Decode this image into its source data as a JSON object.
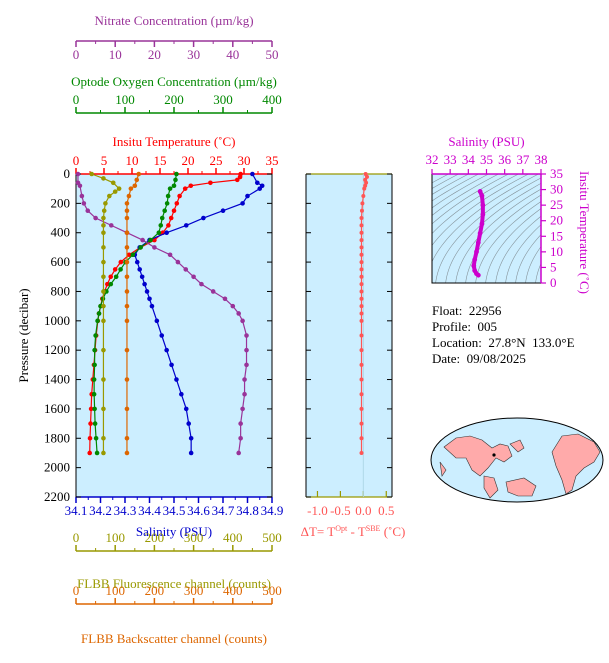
{
  "colors": {
    "temperature": "#ff0000",
    "salinity": "#0000cc",
    "oxygen": "#008800",
    "nitrate": "#993399",
    "fluorescence": "#999900",
    "backscatter": "#dd6600",
    "delta": "#ff5555",
    "ts_axis": "#cc00cc",
    "panel_bg": "#cceeff",
    "map_land": "#ffaaaa"
  },
  "info": {
    "float": "Float:  22956",
    "profile": "Profile:  005",
    "location": "Location:  27.8°N  133.0°E",
    "date": "Date:  09/08/2025"
  },
  "chart_data": [
    {
      "type": "line",
      "ylabel": "Pressure (decibar)",
      "ylim": [
        2200,
        0
      ],
      "yticks": [
        "0",
        "200",
        "400",
        "600",
        "800",
        "1000",
        "1200",
        "1400",
        "1600",
        "1800",
        "2000",
        "2200"
      ],
      "axes": {
        "temperature": {
          "title": "Insitu Temperature (˚C)",
          "range": [
            0,
            35
          ],
          "ticks": [
            "0",
            "5",
            "10",
            "15",
            "20",
            "25",
            "30",
            "35"
          ]
        },
        "salinity": {
          "title": "Salinity (PSU)",
          "range": [
            34.1,
            34.9
          ],
          "ticks": [
            "34.1",
            "34.2",
            "34.3",
            "34.4",
            "34.5",
            "34.6",
            "34.7",
            "34.8",
            "34.9"
          ]
        },
        "oxygen": {
          "title": "Optode Oxygen Concentration (µm/kg)",
          "range": [
            0,
            400
          ],
          "ticks": [
            "0",
            "100",
            "200",
            "300",
            "400"
          ]
        },
        "nitrate": {
          "title": "Nitrate Concentration (µm/kg)",
          "range": [
            0,
            50
          ],
          "ticks": [
            "0",
            "10",
            "20",
            "30",
            "40",
            "50"
          ]
        },
        "fluorescence": {
          "title": "FLBB Fluorescence channel (counts)",
          "range": [
            0,
            500
          ],
          "ticks": [
            "0",
            "100",
            "200",
            "300",
            "400",
            "500"
          ]
        },
        "backscatter": {
          "title": "FLBB Backscatter channel (counts)",
          "range": [
            0,
            500
          ],
          "ticks": [
            "0",
            "100",
            "200",
            "300",
            "400",
            "500"
          ]
        }
      },
      "series": [
        {
          "name": "temperature",
          "values": [
            [
              29.4,
              0
            ],
            [
              29.3,
              20
            ],
            [
              28.8,
              40
            ],
            [
              24.0,
              60
            ],
            [
              20.5,
              80
            ],
            [
              19.5,
              100
            ],
            [
              18.5,
              150
            ],
            [
              18.0,
              200
            ],
            [
              17.5,
              250
            ],
            [
              17.0,
              300
            ],
            [
              16.5,
              350
            ],
            [
              15.5,
              400
            ],
            [
              14.0,
              450
            ],
            [
              11.5,
              500
            ],
            [
              9.5,
              550
            ],
            [
              8.0,
              600
            ],
            [
              7.0,
              650
            ],
            [
              6.2,
              700
            ],
            [
              5.6,
              750
            ],
            [
              5.1,
              800
            ],
            [
              4.7,
              850
            ],
            [
              4.4,
              900
            ],
            [
              4.1,
              950
            ],
            [
              3.9,
              1000
            ],
            [
              3.6,
              1100
            ],
            [
              3.4,
              1200
            ],
            [
              3.2,
              1300
            ],
            [
              3.0,
              1400
            ],
            [
              2.8,
              1500
            ],
            [
              2.7,
              1600
            ],
            [
              2.6,
              1700
            ],
            [
              2.5,
              1800
            ],
            [
              2.45,
              1900
            ]
          ]
        },
        {
          "name": "salinity",
          "values": [
            [
              34.82,
              0
            ],
            [
              34.84,
              60
            ],
            [
              34.86,
              80
            ],
            [
              34.85,
              100
            ],
            [
              34.8,
              150
            ],
            [
              34.78,
              200
            ],
            [
              34.7,
              250
            ],
            [
              34.62,
              300
            ],
            [
              34.55,
              350
            ],
            [
              34.47,
              400
            ],
            [
              34.4,
              450
            ],
            [
              34.36,
              500
            ],
            [
              34.34,
              550
            ],
            [
              34.35,
              600
            ],
            [
              34.36,
              650
            ],
            [
              34.37,
              700
            ],
            [
              34.38,
              750
            ],
            [
              34.39,
              800
            ],
            [
              34.4,
              850
            ],
            [
              34.41,
              900
            ],
            [
              34.43,
              1000
            ],
            [
              34.45,
              1100
            ],
            [
              34.47,
              1200
            ],
            [
              34.49,
              1300
            ],
            [
              34.51,
              1400
            ],
            [
              34.53,
              1500
            ],
            [
              34.55,
              1600
            ],
            [
              34.56,
              1700
            ],
            [
              34.57,
              1800
            ],
            [
              34.57,
              1900
            ]
          ]
        },
        {
          "name": "oxygen",
          "values": [
            [
              205,
              0
            ],
            [
              203,
              40
            ],
            [
              200,
              80
            ],
            [
              192,
              100
            ],
            [
              188,
              150
            ],
            [
              186,
              200
            ],
            [
              181,
              250
            ],
            [
              176,
              300
            ],
            [
              173,
              350
            ],
            [
              169,
              400
            ],
            [
              152,
              450
            ],
            [
              132,
              500
            ],
            [
              116,
              550
            ],
            [
              101,
              600
            ],
            [
              91,
              650
            ],
            [
              82,
              700
            ],
            [
              71,
              750
            ],
            [
              62,
              800
            ],
            [
              55,
              850
            ],
            [
              50,
              900
            ],
            [
              47,
              950
            ],
            [
              44,
              1000
            ],
            [
              40,
              1100
            ],
            [
              38,
              1200
            ],
            [
              38,
              1300
            ],
            [
              37,
              1400
            ],
            [
              37,
              1500
            ],
            [
              38,
              1600
            ],
            [
              39,
              1700
            ],
            [
              41,
              1800
            ],
            [
              43,
              1900
            ]
          ]
        },
        {
          "name": "nitrate",
          "values": [
            [
              0.5,
              0
            ],
            [
              0.5,
              60
            ],
            [
              1,
              80
            ],
            [
              1.5,
              150
            ],
            [
              2,
              200
            ],
            [
              3,
              250
            ],
            [
              5,
              300
            ],
            [
              9,
              350
            ],
            [
              13,
              400
            ],
            [
              17,
              450
            ],
            [
              20,
              500
            ],
            [
              24,
              550
            ],
            [
              26,
              600
            ],
            [
              28,
              650
            ],
            [
              30,
              700
            ],
            [
              32,
              750
            ],
            [
              35,
              800
            ],
            [
              38,
              850
            ],
            [
              40,
              900
            ],
            [
              41.5,
              950
            ],
            [
              42.5,
              1000
            ],
            [
              43.5,
              1100
            ],
            [
              43.5,
              1200
            ],
            [
              43.5,
              1300
            ],
            [
              43,
              1400
            ],
            [
              43,
              1500
            ],
            [
              42.5,
              1600
            ],
            [
              42,
              1700
            ],
            [
              42,
              1800
            ],
            [
              41.5,
              1900
            ]
          ]
        },
        {
          "name": "fluorescence",
          "values": [
            [
              40,
              0
            ],
            [
              70,
              30
            ],
            [
              95,
              60
            ],
            [
              110,
              100
            ],
            [
              100,
              120
            ],
            [
              85,
              150
            ],
            [
              75,
              200
            ],
            [
              72,
              250
            ],
            [
              70,
              300
            ],
            [
              70,
              350
            ],
            [
              70,
              400
            ],
            [
              70,
              500
            ],
            [
              70,
              600
            ],
            [
              70,
              700
            ],
            [
              70,
              800
            ],
            [
              70,
              900
            ],
            [
              70,
              1000
            ],
            [
              70,
              1200
            ],
            [
              70,
              1400
            ],
            [
              70,
              1600
            ],
            [
              70,
              1800
            ],
            [
              70,
              1900
            ]
          ]
        },
        {
          "name": "backscatter",
          "values": [
            [
              160,
              0
            ],
            [
              155,
              40
            ],
            [
              150,
              80
            ],
            [
              140,
              100
            ],
            [
              135,
              150
            ],
            [
              130,
              200
            ],
            [
              130,
              250
            ],
            [
              130,
              300
            ],
            [
              130,
              400
            ],
            [
              130,
              500
            ],
            [
              130,
              600
            ],
            [
              130,
              700
            ],
            [
              130,
              800
            ],
            [
              130,
              900
            ],
            [
              130,
              1000
            ],
            [
              130,
              1200
            ],
            [
              130,
              1400
            ],
            [
              130,
              1600
            ],
            [
              130,
              1800
            ],
            [
              130,
              1900
            ]
          ]
        }
      ]
    },
    {
      "type": "scatter",
      "xlabel": "ΔT= T^Opt - T^SBE (˚C)",
      "xlabel_parts": {
        "base": "ΔT= T",
        "sup1": "Opt",
        "mid": " - T",
        "sup2": "SBE",
        "tail": " (˚C)"
      },
      "xlim": [
        -1.25,
        0.625
      ],
      "xticks": [
        "-1.0",
        "-0.5",
        "0.0",
        "0.5"
      ],
      "ylim": [
        2200,
        0
      ],
      "values": [
        [
          0.05,
          0
        ],
        [
          0.08,
          20
        ],
        [
          0.04,
          40
        ],
        [
          0.06,
          60
        ],
        [
          0.04,
          80
        ],
        [
          0.02,
          100
        ],
        [
          0.0,
          150
        ],
        [
          -0.02,
          200
        ],
        [
          -0.03,
          250
        ],
        [
          -0.04,
          300
        ],
        [
          -0.04,
          350
        ],
        [
          -0.04,
          400
        ],
        [
          -0.04,
          450
        ],
        [
          -0.04,
          500
        ],
        [
          -0.04,
          550
        ],
        [
          -0.04,
          600
        ],
        [
          -0.04,
          650
        ],
        [
          -0.04,
          700
        ],
        [
          -0.04,
          750
        ],
        [
          -0.04,
          800
        ],
        [
          -0.04,
          850
        ],
        [
          -0.04,
          900
        ],
        [
          -0.04,
          950
        ],
        [
          -0.04,
          1000
        ],
        [
          -0.04,
          1100
        ],
        [
          -0.04,
          1200
        ],
        [
          -0.04,
          1300
        ],
        [
          -0.04,
          1400
        ],
        [
          -0.04,
          1500
        ],
        [
          -0.04,
          1600
        ],
        [
          -0.04,
          1700
        ],
        [
          -0.04,
          1800
        ],
        [
          -0.04,
          1900
        ]
      ]
    },
    {
      "type": "line",
      "title": "Salinity (PSU)",
      "xlim": [
        32,
        38
      ],
      "xticks": [
        "32",
        "33",
        "34",
        "35",
        "36",
        "37",
        "38"
      ],
      "ylabel": "Insitu Temperature (˚C)",
      "ylim": [
        0,
        35
      ],
      "yticks": [
        "0",
        "5",
        "10",
        "15",
        "20",
        "25",
        "30",
        "35"
      ],
      "values": [
        [
          34.65,
          29.4
        ],
        [
          34.75,
          28
        ],
        [
          34.8,
          25
        ],
        [
          34.8,
          22
        ],
        [
          34.75,
          19
        ],
        [
          34.65,
          16
        ],
        [
          34.55,
          13
        ],
        [
          34.45,
          10
        ],
        [
          34.35,
          7.5
        ],
        [
          34.3,
          5.5
        ],
        [
          34.35,
          4
        ],
        [
          34.45,
          3
        ],
        [
          34.55,
          2.5
        ]
      ]
    }
  ]
}
